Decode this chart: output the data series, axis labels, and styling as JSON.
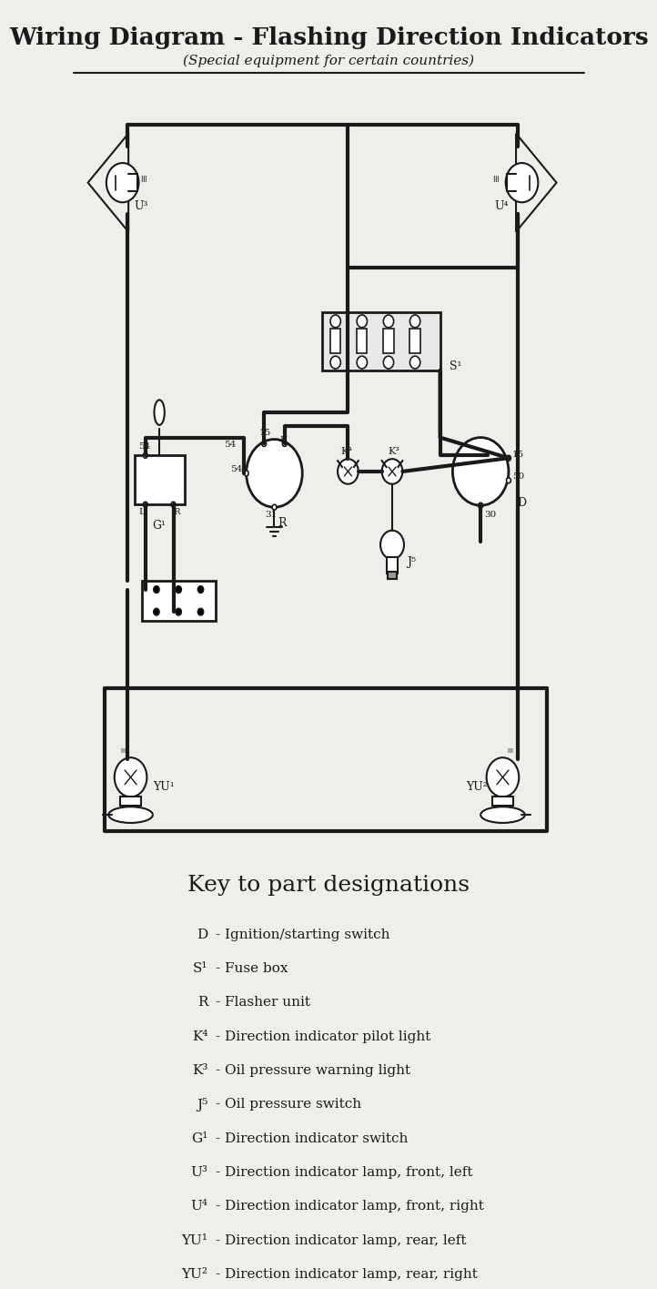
{
  "title": "Wiring Diagram - Flashing Direction Indicators",
  "subtitle": "(Special equipment for certain countries)",
  "bg_color": "#f0eeea",
  "line_color": "#1a1a1a",
  "key_title": "Key to part designations",
  "key_items": [
    [
      "D",
      "Ignition/starting switch"
    ],
    [
      "S¹",
      "Fuse box"
    ],
    [
      "R",
      "Flasher unit"
    ],
    [
      "K⁴",
      "Direction indicator pilot light"
    ],
    [
      "K³",
      "Oil pressure warning light"
    ],
    [
      "J⁵",
      "Oil pressure switch"
    ],
    [
      "G¹",
      "Direction indicator switch"
    ],
    [
      "U³",
      "Direction indicator lamp, front, left"
    ],
    [
      "U⁴",
      "Direction indicator lamp, front, right"
    ],
    [
      "YU¹",
      "Direction indicator lamp, rear, left"
    ],
    [
      "YU²",
      "Direction indicator lamp, rear, right"
    ]
  ]
}
